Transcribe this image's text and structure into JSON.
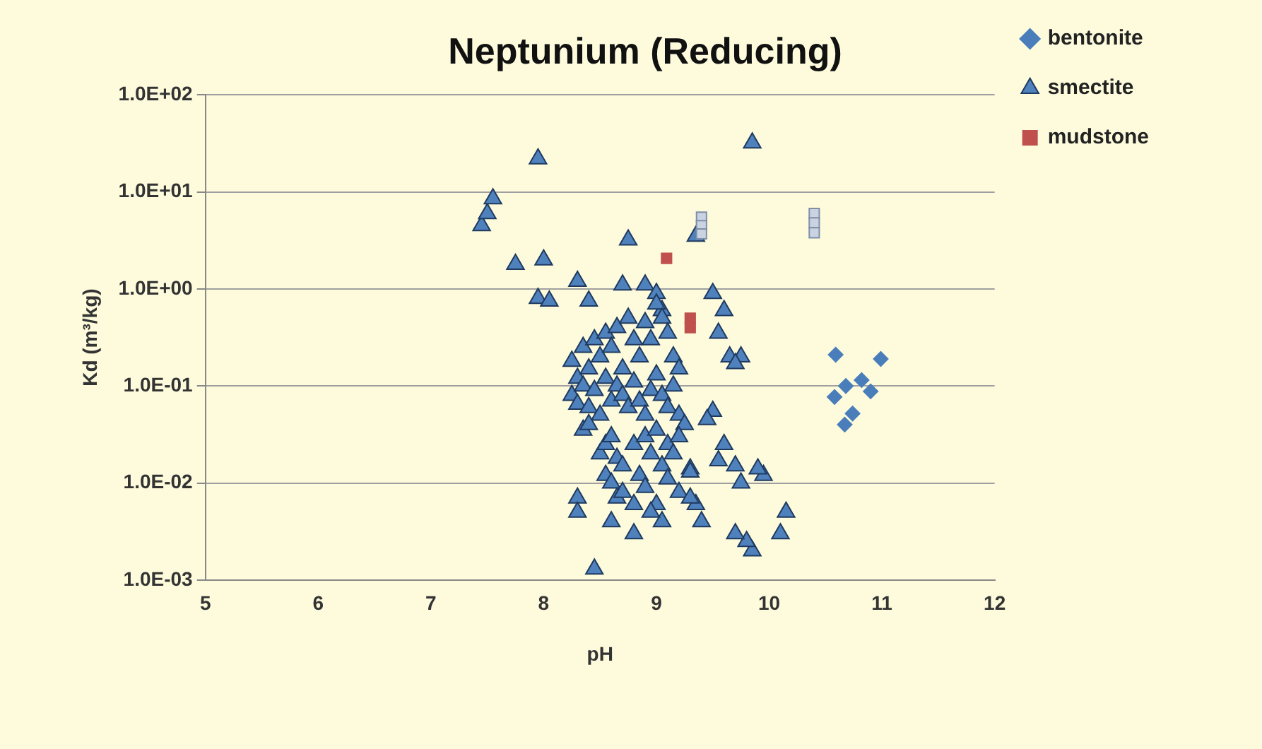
{
  "chart_data": {
    "type": "scatter",
    "title": "Neptunium (Reducing)",
    "xlabel": "pH",
    "ylabel": "Kd (m³/kg)",
    "log": "y",
    "grid": "y",
    "legend": "top right",
    "xlim": [
      5,
      12
    ],
    "xticks": [
      5,
      6,
      7,
      8,
      9,
      10,
      11,
      12
    ],
    "ylim": [
      0.001,
      100
    ],
    "yticks": [
      {
        "value": 0.001,
        "label": "1.0E-03"
      },
      {
        "value": 0.01,
        "label": "1.0E-02"
      },
      {
        "value": 0.1,
        "label": "1.0E-01"
      },
      {
        "value": 1,
        "label": "1.0E+00"
      },
      {
        "value": 10,
        "label": "1.0E+01"
      },
      {
        "value": 100,
        "label": "1.0E+02"
      }
    ],
    "series": [
      {
        "name": "bentonite",
        "color": "#4a7ebb",
        "marker": "diamond",
        "x": [
          10.59,
          10.99,
          10.68,
          10.82,
          10.58,
          10.9,
          10.74,
          10.67
        ],
        "values": [
          0.21,
          0.19,
          0.1,
          0.115,
          0.077,
          0.088,
          0.052,
          0.04
        ]
      },
      {
        "color": "#c9d3e2",
        "marker": "square",
        "x": [
          9.4,
          9.4,
          9.4,
          10.4,
          10.4,
          10.4
        ],
        "values": [
          5.5,
          4.5,
          3.7,
          6,
          4.8,
          3.8
        ]
      },
      {
        "name": "smectite",
        "color": "#4f81bd",
        "marker": "triangle",
        "x": [
          7.45,
          7.5,
          7.55,
          7.95,
          9.85,
          7.75,
          8.0,
          7.95,
          8.05,
          8.3,
          8.4,
          8.75,
          9.35,
          8.7,
          8.9,
          9.0,
          9.05,
          9.5,
          9.6,
          9.55,
          9.65,
          9.75,
          9.7,
          8.25,
          8.3,
          8.35,
          8.4,
          8.45,
          8.5,
          8.55,
          8.6,
          8.65,
          8.7,
          8.75,
          8.8,
          8.85,
          8.9,
          8.95,
          9.0,
          9.05,
          9.1,
          9.15,
          9.2,
          8.25,
          8.3,
          8.35,
          8.4,
          8.45,
          8.5,
          8.55,
          8.6,
          8.65,
          8.7,
          8.75,
          8.8,
          8.85,
          8.9,
          8.95,
          9.0,
          9.05,
          9.1,
          9.15,
          9.2,
          9.25,
          8.35,
          8.4,
          8.5,
          8.55,
          8.6,
          8.65,
          8.7,
          8.8,
          8.85,
          8.9,
          8.95,
          9.0,
          9.05,
          9.1,
          9.15,
          9.2,
          8.55,
          8.6,
          8.65,
          8.7,
          8.8,
          8.9,
          9.0,
          9.1,
          9.2,
          9.3,
          8.45,
          8.3,
          8.3,
          8.8,
          9.85,
          9.8,
          9.7,
          10.1,
          10.15,
          9.95,
          9.9,
          9.7,
          9.75,
          9.6,
          9.5,
          9.45,
          9.3,
          9.35,
          9.4,
          9.3,
          9.55,
          9.05,
          8.95,
          8.6
        ],
        "values": [
          4.5,
          6,
          8.5,
          22,
          32,
          1.8,
          2.0,
          0.8,
          0.75,
          1.2,
          0.75,
          3.2,
          3.5,
          1.1,
          1.1,
          0.9,
          0.6,
          0.9,
          0.6,
          0.35,
          0.2,
          0.2,
          0.17,
          0.18,
          0.12,
          0.25,
          0.15,
          0.3,
          0.2,
          0.35,
          0.25,
          0.4,
          0.15,
          0.5,
          0.3,
          0.2,
          0.45,
          0.3,
          0.7,
          0.5,
          0.35,
          0.2,
          0.15,
          0.08,
          0.065,
          0.1,
          0.06,
          0.09,
          0.05,
          0.12,
          0.07,
          0.1,
          0.08,
          0.06,
          0.11,
          0.07,
          0.05,
          0.09,
          0.13,
          0.08,
          0.06,
          0.1,
          0.05,
          0.04,
          0.035,
          0.04,
          0.02,
          0.025,
          0.03,
          0.018,
          0.015,
          0.025,
          0.012,
          0.03,
          0.02,
          0.035,
          0.015,
          0.025,
          0.02,
          0.03,
          0.012,
          0.01,
          0.007,
          0.008,
          0.006,
          0.009,
          0.006,
          0.011,
          0.008,
          0.014,
          0.0013,
          0.007,
          0.005,
          0.003,
          0.002,
          0.0025,
          0.003,
          0.003,
          0.005,
          0.012,
          0.014,
          0.015,
          0.01,
          0.025,
          0.055,
          0.045,
          0.013,
          0.006,
          0.004,
          0.007,
          0.017,
          0.004,
          0.005,
          0.004
        ]
      },
      {
        "name": "mudstone",
        "color": "#c0504d",
        "marker": "square",
        "x": [
          9.09,
          9.3,
          9.3
        ],
        "values": [
          2.07,
          0.5,
          0.4
        ]
      }
    ]
  }
}
